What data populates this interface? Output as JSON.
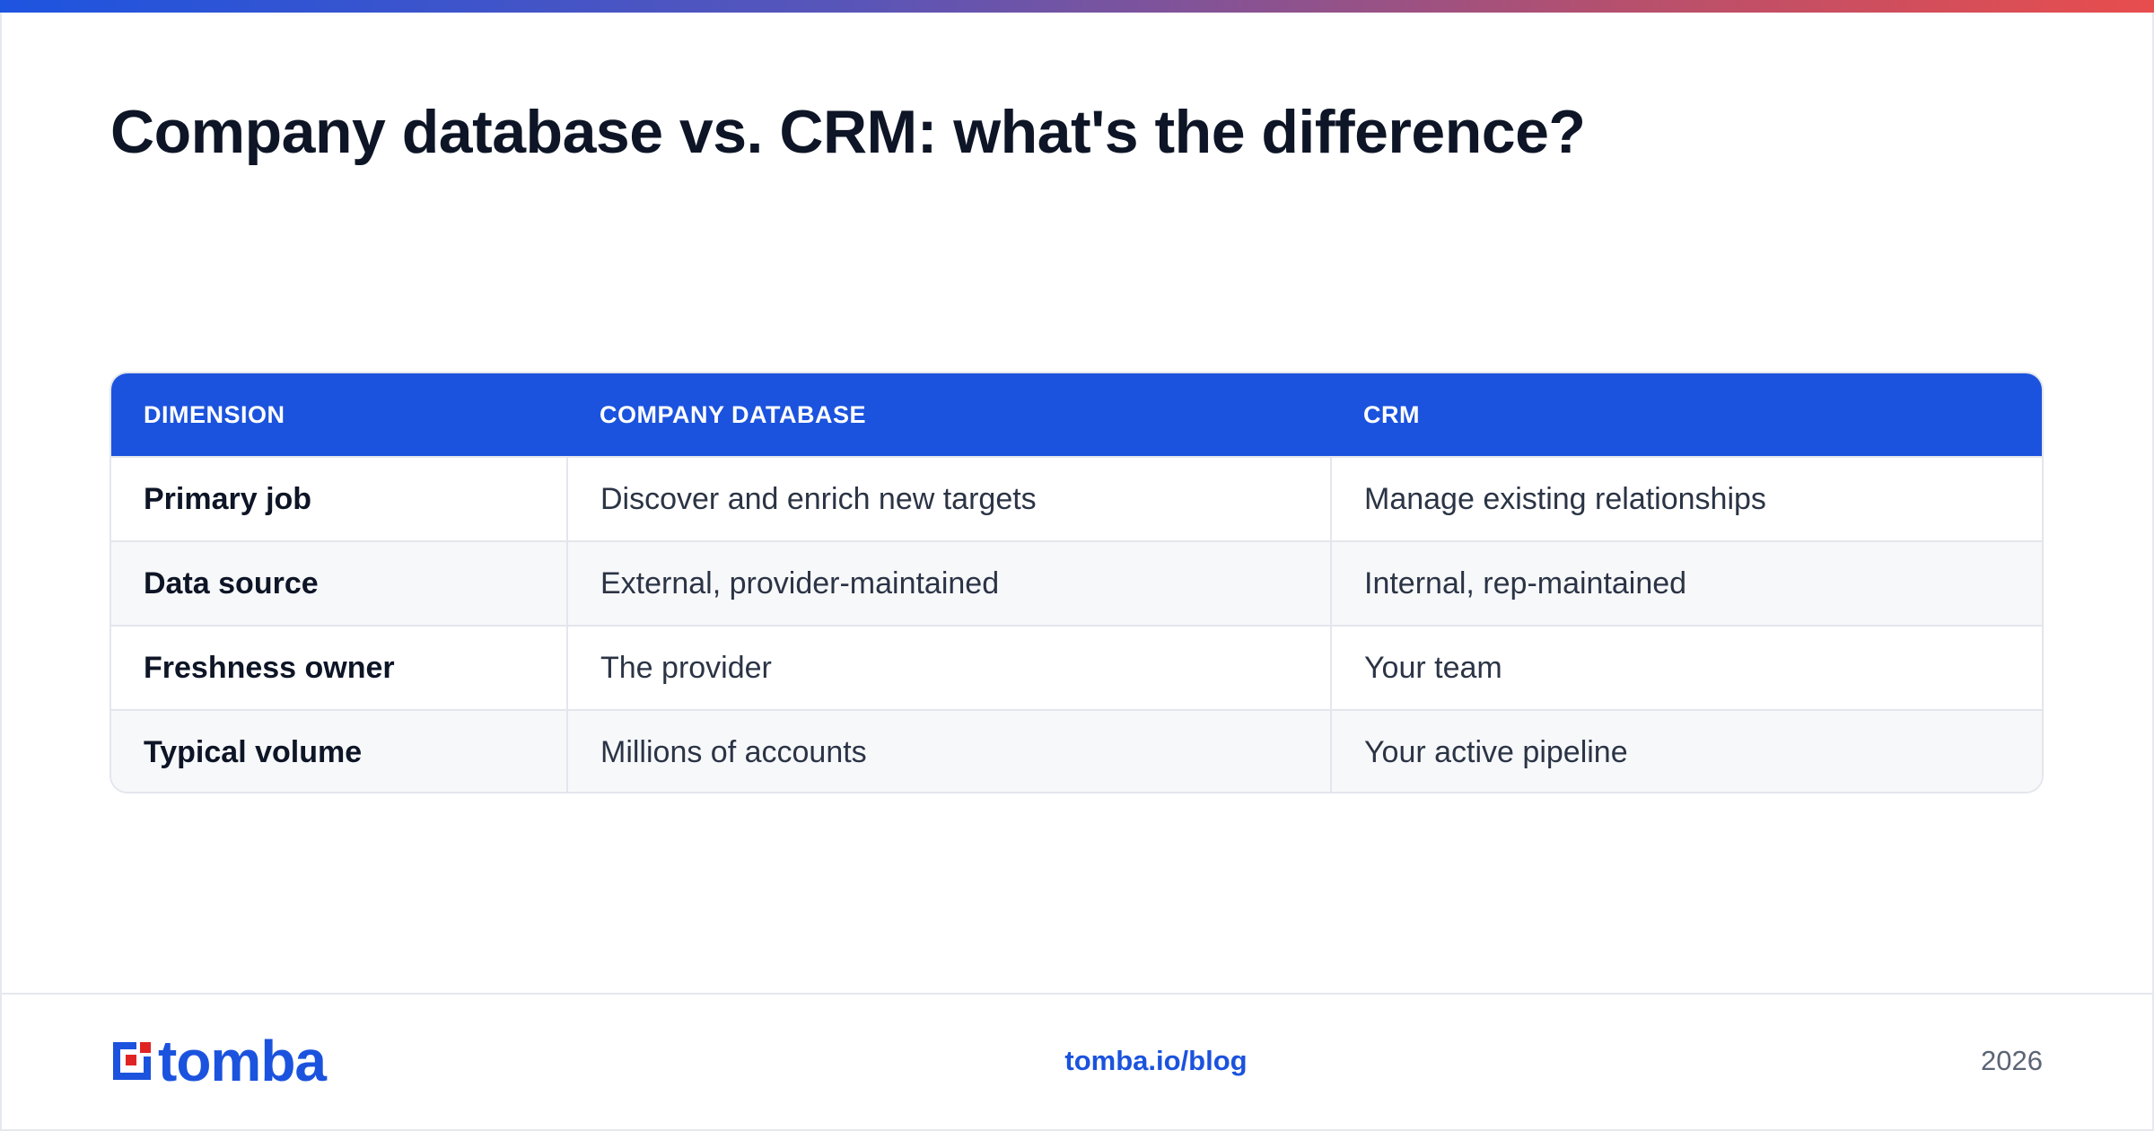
{
  "title": "Company database vs. CRM: what's the difference?",
  "table": {
    "headers": [
      "DIMENSION",
      "COMPANY DATABASE",
      "CRM"
    ],
    "rows": [
      [
        "Primary job",
        "Discover and enrich new targets",
        "Manage existing relationships"
      ],
      [
        "Data source",
        "External, provider-maintained",
        "Internal, rep-maintained"
      ],
      [
        "Freshness owner",
        "The provider",
        "Your team"
      ],
      [
        "Typical volume",
        "Millions of accounts",
        "Your active pipeline"
      ]
    ]
  },
  "footer": {
    "logo_text": "tomba",
    "link": "tomba.io/blog",
    "year": "2026"
  },
  "colors": {
    "accent": "#1b53de",
    "logo_red": "#e02424",
    "title": "#0d1526"
  },
  "icons": {
    "logo": "tomba-logo-mark"
  }
}
